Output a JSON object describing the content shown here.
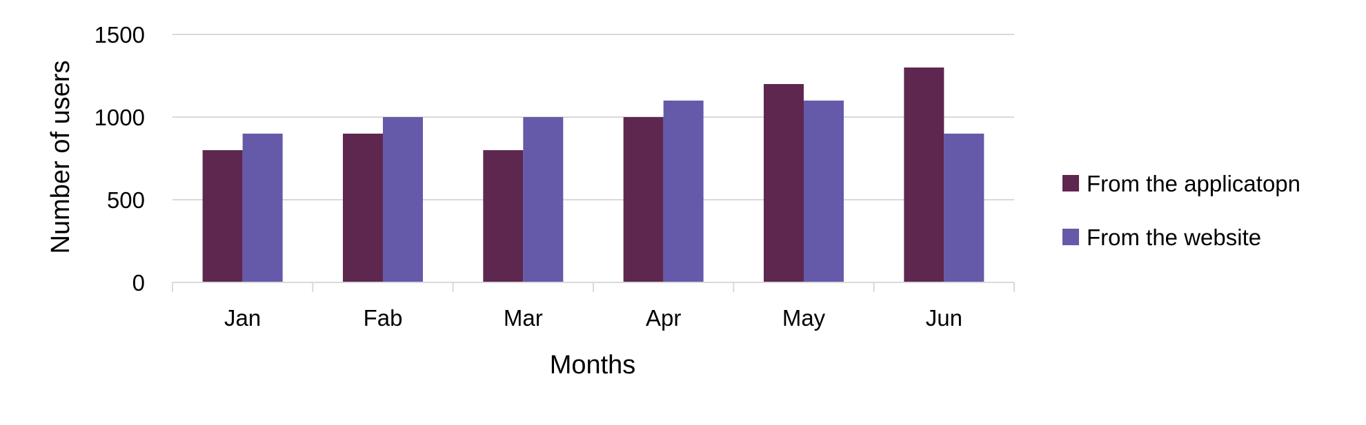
{
  "chart_data": {
    "type": "bar",
    "title": "",
    "xlabel": "Months",
    "ylabel": "Number of users",
    "categories": [
      "Jan",
      "Fab",
      "Mar",
      "Apr",
      "May",
      "Jun"
    ],
    "series": [
      {
        "name": "From the applicatopn",
        "color": "#5e2750",
        "values": [
          800,
          900,
          800,
          1000,
          1200,
          1300
        ]
      },
      {
        "name": "From the website",
        "color": "#655aa9",
        "values": [
          900,
          1000,
          1000,
          1100,
          1100,
          900
        ]
      }
    ],
    "ylim": [
      0,
      1500
    ],
    "yticks": [
      0,
      500,
      1000,
      1500
    ],
    "grid": true,
    "grid_color": "#d9d9d9",
    "legend_position": "right"
  }
}
